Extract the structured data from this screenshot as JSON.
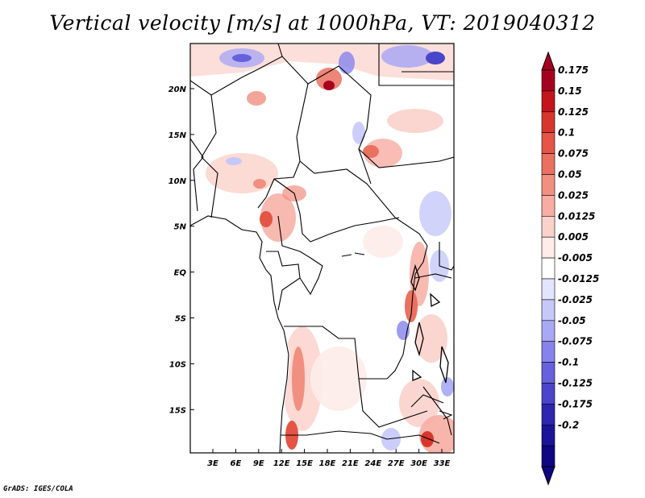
{
  "title": "Vertical velocity [m/s] at 1000hPa, VT: 2019040312",
  "credit": "GrADS: IGES/COLA",
  "map": {
    "lat_labels": [
      "20N",
      "15N",
      "10N",
      "5N",
      "EQ",
      "5S",
      "10S",
      "15S"
    ],
    "lon_labels": [
      "3E",
      "6E",
      "9E",
      "12E",
      "15E",
      "18E",
      "21E",
      "24E",
      "27E",
      "30E",
      "33E"
    ]
  },
  "colorbar": {
    "labels": [
      "0.175",
      "0.15",
      "0.125",
      "0.1",
      "0.075",
      "0.05",
      "0.025",
      "0.0125",
      "0.005",
      "-0.005",
      "-0.0125",
      "-0.025",
      "-0.05",
      "-0.075",
      "-0.1",
      "-0.125",
      "-0.175",
      "-0.2"
    ],
    "colors": [
      "#a6001f",
      "#c4151d",
      "#d8362c",
      "#e45546",
      "#ea7060",
      "#f18f80",
      "#f7ada3",
      "#fbd2cb",
      "#fdecea",
      "#ffffff",
      "#e3e4fd",
      "#c6c8fa",
      "#a9a8f4",
      "#8683ec",
      "#6661dc",
      "#4a45c9",
      "#2c26b0",
      "#1a1498",
      "#0e0682"
    ],
    "top_color": "#a6001f",
    "bottom_color": "#0e0682"
  }
}
